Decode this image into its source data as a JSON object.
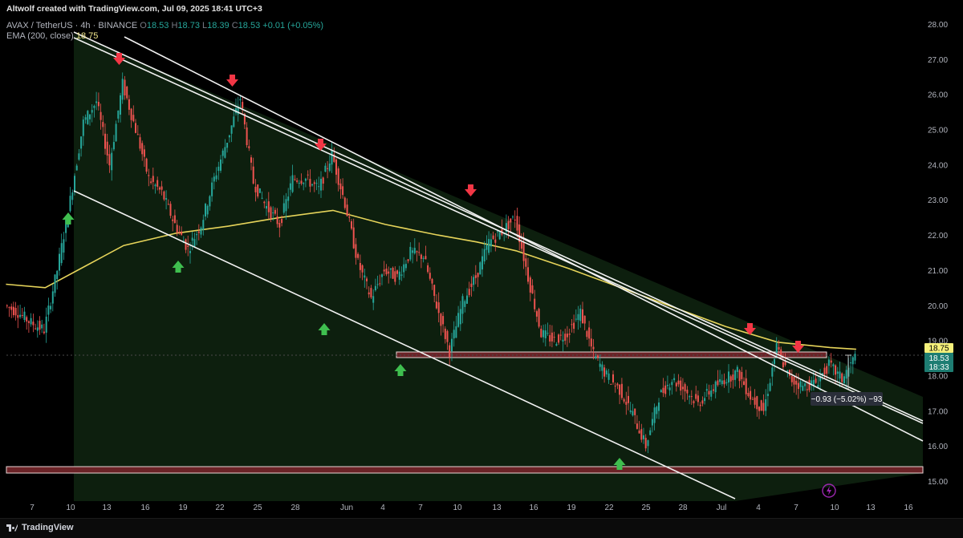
{
  "header": {
    "credit": "Altwolf created with TradingView.com, Jul 09, 2025 18:41 UTC+3",
    "symbol_line": "AVAX / TetherUS · 4h · BINANCE",
    "ohlc": {
      "O": "18.53",
      "H": "18.73",
      "L": "18.39",
      "C": "18.53",
      "change": "+0.01 (+0.05%)"
    },
    "ema_label": "EMA (200, close)",
    "ema_value": "18.75"
  },
  "footer": {
    "brand": "TradingView"
  },
  "colors": {
    "bull": "#26a69a",
    "bear": "#ef5350",
    "ema": "#e6d45a",
    "channel_fill": "#0f2410",
    "zone_fill": "#6b2327",
    "arrow_up": "#3fbf4f",
    "arrow_down": "#f23645",
    "price_tag_ema": "#f5f07a",
    "price_tag_last": "#1e7d72"
  },
  "chart_data": {
    "type": "candlestick",
    "x_ticks": [
      "7",
      "10",
      "13",
      "16",
      "19",
      "22",
      "25",
      "28",
      "Jun",
      "4",
      "7",
      "10",
      "13",
      "16",
      "19",
      "22",
      "25",
      "28",
      "Jul",
      "4",
      "7",
      "10",
      "13",
      "16"
    ],
    "y_ticks": [
      "28.00",
      "27.00",
      "26.00",
      "25.00",
      "24.00",
      "23.00",
      "22.00",
      "21.00",
      "20.00",
      "19.00",
      "18.00",
      "17.00",
      "16.00",
      "15.00"
    ],
    "ylim": [
      14.55,
      28.2
    ],
    "price_tags": [
      {
        "label": "18.75",
        "kind": "ema"
      },
      {
        "label": "18.53",
        "kind": "last"
      },
      {
        "label": "18:33",
        "kind": "countdown"
      }
    ],
    "measure_label": "−0.93 (−5.02%) −93",
    "ema_points": [
      {
        "x": "May 5",
        "y": 20.6
      },
      {
        "x": "May 8",
        "y": 20.5
      },
      {
        "x": "May 11",
        "y": 21.1
      },
      {
        "x": "May 14",
        "y": 21.7
      },
      {
        "x": "May 18",
        "y": 22.05
      },
      {
        "x": "May 22",
        "y": 22.25
      },
      {
        "x": "May 26",
        "y": 22.5
      },
      {
        "x": "May 30",
        "y": 22.7
      },
      {
        "x": "Jun 3",
        "y": 22.3
      },
      {
        "x": "Jun 7",
        "y": 22.0
      },
      {
        "x": "Jun 10",
        "y": 21.8
      },
      {
        "x": "Jun 13",
        "y": 21.55
      },
      {
        "x": "Jun 17",
        "y": 21.05
      },
      {
        "x": "Jun 21",
        "y": 20.5
      },
      {
        "x": "Jun 25",
        "y": 19.95
      },
      {
        "x": "Jun 29",
        "y": 19.4
      },
      {
        "x": "Jul 3",
        "y": 18.95
      },
      {
        "x": "Jul 7",
        "y": 18.8
      },
      {
        "x": "Jul 9",
        "y": 18.75
      }
    ],
    "price_path": [
      {
        "x": "May 5",
        "y": 20.0
      },
      {
        "x": "May 6",
        "y": 19.8
      },
      {
        "x": "May 7",
        "y": 19.5
      },
      {
        "x": "May 8",
        "y": 19.3
      },
      {
        "x": "May 9",
        "y": 21.0
      },
      {
        "x": "May 10",
        "y": 23.0
      },
      {
        "x": "May 11",
        "y": 25.2
      },
      {
        "x": "May 12",
        "y": 25.8
      },
      {
        "x": "May 13",
        "y": 24.0
      },
      {
        "x": "May 14",
        "y": 26.3
      },
      {
        "x": "May 15",
        "y": 25.0
      },
      {
        "x": "May 16",
        "y": 23.6
      },
      {
        "x": "May 17",
        "y": 23.2
      },
      {
        "x": "May 18",
        "y": 22.3
      },
      {
        "x": "May 19",
        "y": 21.6
      },
      {
        "x": "May 20",
        "y": 22.3
      },
      {
        "x": "May 21",
        "y": 23.6
      },
      {
        "x": "May 22",
        "y": 24.7
      },
      {
        "x": "May 23",
        "y": 25.9
      },
      {
        "x": "May 24",
        "y": 23.5
      },
      {
        "x": "May 25",
        "y": 22.8
      },
      {
        "x": "May 26",
        "y": 22.3
      },
      {
        "x": "May 27",
        "y": 23.6
      },
      {
        "x": "May 28",
        "y": 23.6
      },
      {
        "x": "May 29",
        "y": 23.3
      },
      {
        "x": "May 30",
        "y": 24.3
      },
      {
        "x": "May 31",
        "y": 22.9
      },
      {
        "x": "Jun 1",
        "y": 21.2
      },
      {
        "x": "Jun 2",
        "y": 20.2
      },
      {
        "x": "Jun 3",
        "y": 21.0
      },
      {
        "x": "Jun 4",
        "y": 20.8
      },
      {
        "x": "Jun 5",
        "y": 21.5
      },
      {
        "x": "Jun 6",
        "y": 21.4
      },
      {
        "x": "Jun 7",
        "y": 20.0
      },
      {
        "x": "Jun 8",
        "y": 18.7
      },
      {
        "x": "Jun 9",
        "y": 20.1
      },
      {
        "x": "Jun 10",
        "y": 20.8
      },
      {
        "x": "Jun 11",
        "y": 21.8
      },
      {
        "x": "Jun 12",
        "y": 22.1
      },
      {
        "x": "Jun 13",
        "y": 22.5
      },
      {
        "x": "Jun 14",
        "y": 20.8
      },
      {
        "x": "Jun 15",
        "y": 19.2
      },
      {
        "x": "Jun 16",
        "y": 19.0
      },
      {
        "x": "Jun 17",
        "y": 19.2
      },
      {
        "x": "Jun 18",
        "y": 19.8
      },
      {
        "x": "Jun 19",
        "y": 18.6
      },
      {
        "x": "Jun 20",
        "y": 18.0
      },
      {
        "x": "Jun 21",
        "y": 17.6
      },
      {
        "x": "Jun 22",
        "y": 16.9
      },
      {
        "x": "Jun 23",
        "y": 16.0
      },
      {
        "x": "Jun 24",
        "y": 17.4
      },
      {
        "x": "Jun 25",
        "y": 17.9
      },
      {
        "x": "Jun 26",
        "y": 17.6
      },
      {
        "x": "Jun 27",
        "y": 17.2
      },
      {
        "x": "Jun 28",
        "y": 17.6
      },
      {
        "x": "Jun 29",
        "y": 17.9
      },
      {
        "x": "Jun 30",
        "y": 18.1
      },
      {
        "x": "Jul 1",
        "y": 17.4
      },
      {
        "x": "Jul 2",
        "y": 17.0
      },
      {
        "x": "Jul 3",
        "y": 18.8
      },
      {
        "x": "Jul 4",
        "y": 17.9
      },
      {
        "x": "Jul 5",
        "y": 17.7
      },
      {
        "x": "Jul 6",
        "y": 17.8
      },
      {
        "x": "Jul 7",
        "y": 18.3
      },
      {
        "x": "Jul 8",
        "y": 17.9
      },
      {
        "x": "Jul 9",
        "y": 18.53
      }
    ]
  }
}
